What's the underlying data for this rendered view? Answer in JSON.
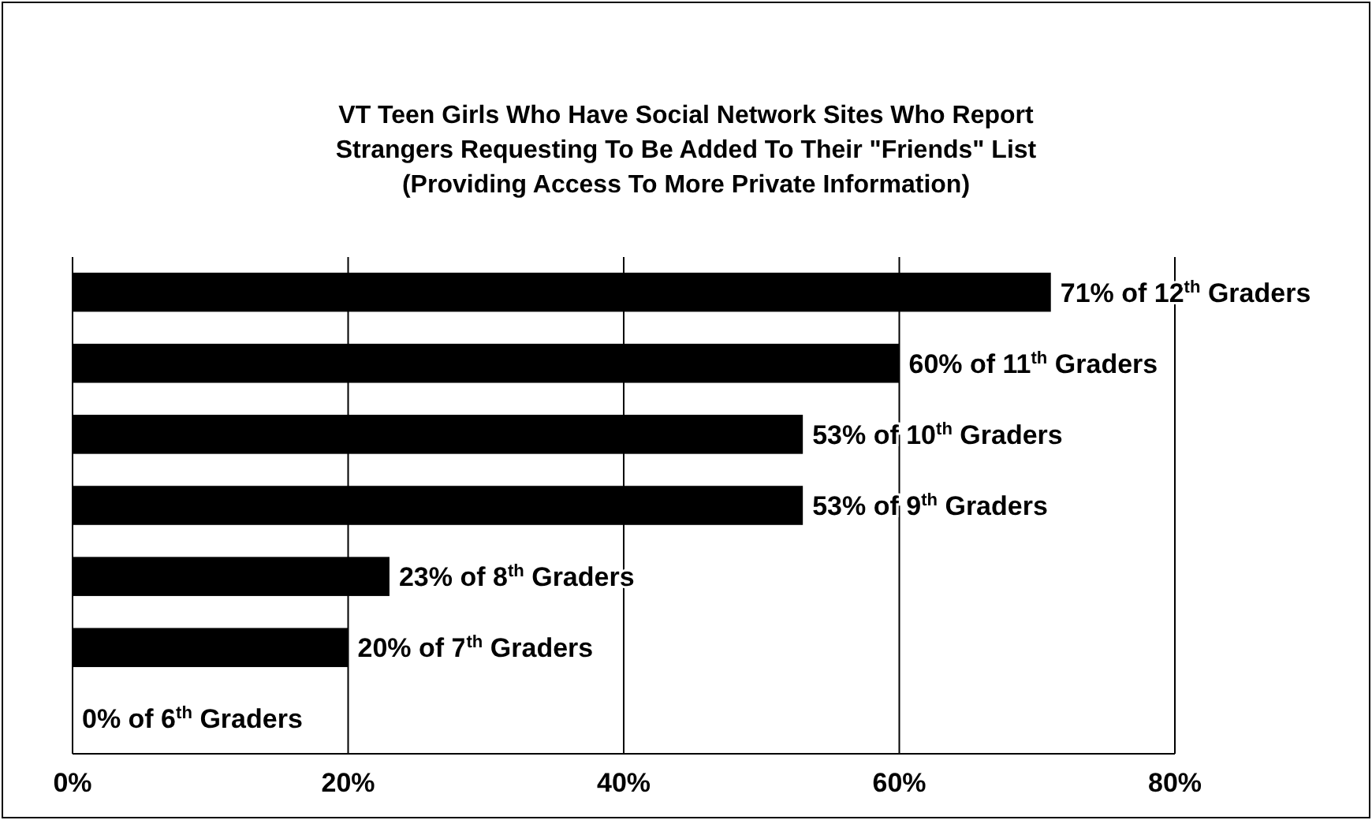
{
  "chart_data": {
    "type": "bar",
    "orientation": "horizontal",
    "title": "VT Teen Girls Who Have Social Network Sites Who Report\nStrangers Requesting To Be Added To Their \"Friends\" List\n(Providing Access To More Private Information)",
    "categories": [
      null,
      null,
      null,
      null,
      null,
      null,
      null
    ],
    "values": [
      71,
      60,
      53,
      53,
      23,
      20,
      0
    ],
    "value_labels": [
      "71% of 12$^{th}$ Graders",
      "60% of 11$^{th}$ Graders",
      "53% of 10$^{th}$ Graders",
      "53% of 9$^{th}$ Graders",
      "23% of 8$^{th}$ Graders",
      "20% of 7$^{th}$ Graders",
      "0% of 6$^{th}$ Graders"
    ],
    "color": "#000000",
    "xlim": [
      0,
      80
    ],
    "xticks": [
      {
        "value": 0,
        "label": "0%"
      },
      {
        "value": 20,
        "label": "20%"
      },
      {
        "value": 40,
        "label": "40%"
      },
      {
        "value": 60,
        "label": "60%"
      },
      {
        "value": 80,
        "label": "80%"
      }
    ],
    "grid": "x"
  }
}
